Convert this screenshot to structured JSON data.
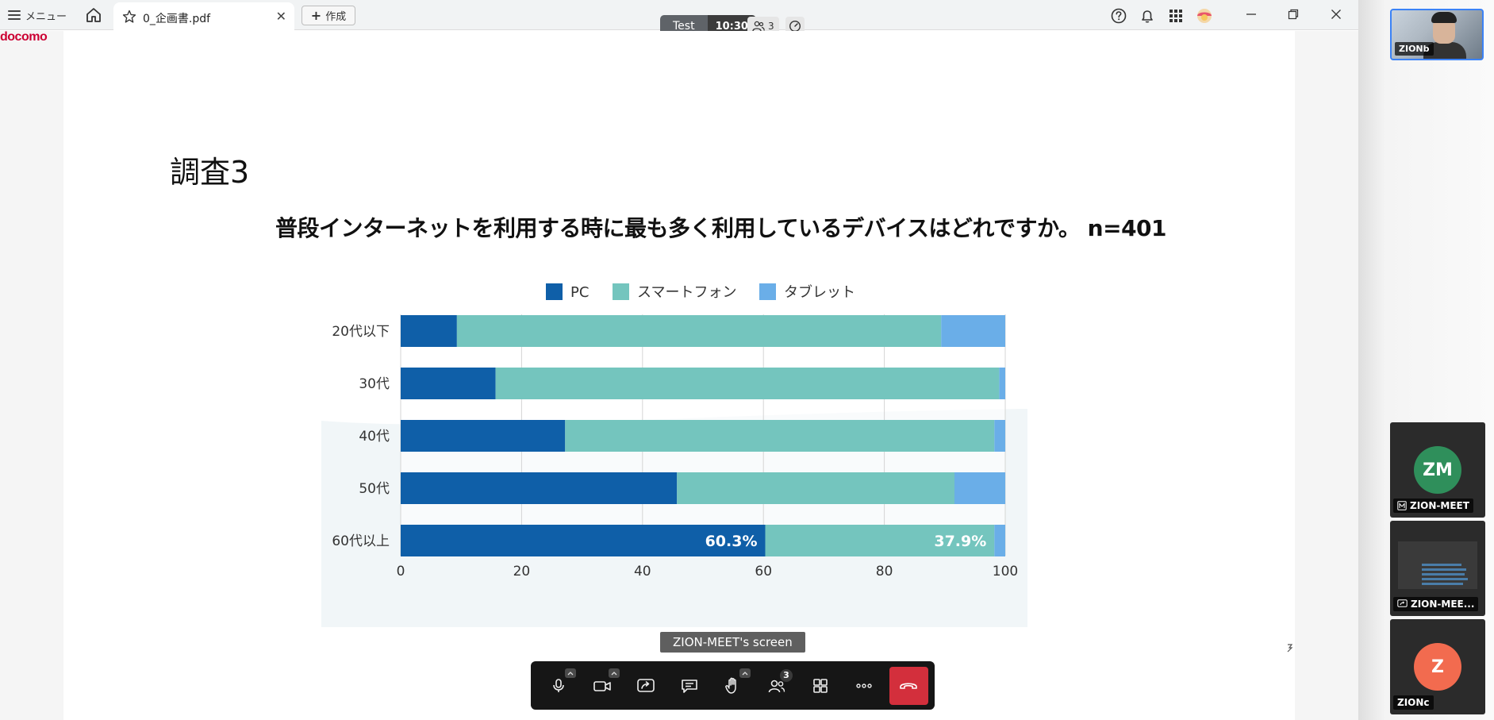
{
  "browser": {
    "menu_label": "メニュー",
    "tab_title": "0_企画書.pdf",
    "tab_close": "✕",
    "create_label": "作成",
    "brand": "docomo"
  },
  "meeting": {
    "room_name": "Test",
    "timer": "10:30",
    "participant_count": "3",
    "screen_label": "ZION-MEET's screen",
    "toolbar_participant_badge": "3"
  },
  "slide": {
    "title": "調査3",
    "question": "普段インターネットを利用する時に最も多く利用しているデバイスはどれですか。 n=401"
  },
  "chart_data": {
    "type": "bar",
    "orientation": "horizontal",
    "stacked": true,
    "categories": [
      "20代以下",
      "30代",
      "40代",
      "50代",
      "60代以上"
    ],
    "series": [
      {
        "name": "PC",
        "color": "#0f5fa8",
        "values": [
          9.3,
          15.7,
          27.2,
          45.7,
          60.3
        ]
      },
      {
        "name": "スマートフォン",
        "color": "#74c5be",
        "values": [
          80.1,
          83.3,
          71.0,
          45.9,
          37.9
        ]
      },
      {
        "name": "タブレット",
        "color": "#6aaee8",
        "values": [
          10.6,
          1.0,
          1.8,
          8.4,
          1.8
        ]
      }
    ],
    "data_labels": [
      {
        "category": "60代以上",
        "series": "PC",
        "text": "60.3%"
      },
      {
        "category": "60代以上",
        "series": "スマートフォン",
        "text": "37.9%"
      }
    ],
    "x_ticks": [
      "0",
      "20",
      "40",
      "60",
      "80",
      "100"
    ],
    "xlim": [
      0,
      100
    ],
    "legend_position": "top-center",
    "grid": true
  },
  "participants": {
    "self_name": "ZIONb",
    "tiles": [
      {
        "initials": "ZM",
        "name": "ZION-MEET",
        "color": "#2f8f5b",
        "kind": "avatar"
      },
      {
        "initials": "",
        "name": "ZION-MEE...",
        "color": "#3a3a3a",
        "kind": "screen"
      },
      {
        "initials": "Z",
        "name": "ZIONc",
        "color": "#f26b4f",
        "kind": "avatar"
      }
    ]
  }
}
